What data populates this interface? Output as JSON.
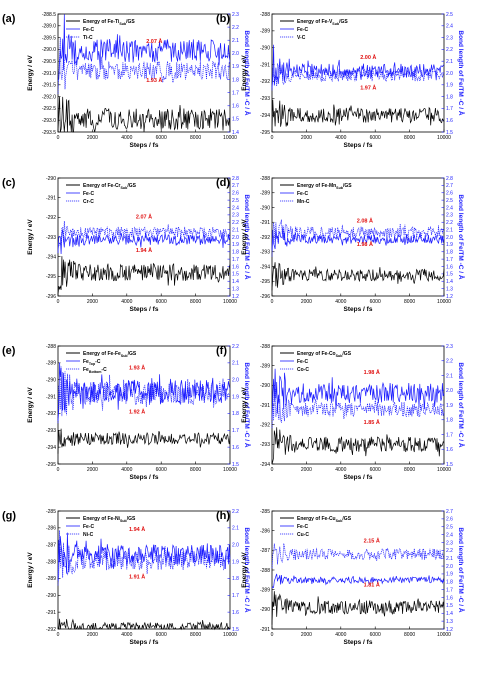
{
  "colors": {
    "energy": "#000000",
    "bond": "#1a1aff",
    "annotation": "#e01010"
  },
  "chart_data": [
    {
      "type": "line",
      "panel": "(a)",
      "xlabel": "Steps / fs",
      "ylabel_left": "Energy / eV",
      "ylabel_right": "Bond length of Fe/TM -C / Å",
      "xlim": [
        0,
        10000
      ],
      "xticks": [
        "0",
        "2000",
        "4000",
        "6000",
        "8000",
        "10000"
      ],
      "ylim_left": [
        -293.5,
        -288.5
      ],
      "yticks_left": [
        "-288.5",
        "-289.0",
        "-289.5",
        "-290.0",
        "-290.5",
        "-291.0",
        "-291.5",
        "-292.0",
        "-292.5",
        "-293.0",
        "-293.5"
      ],
      "ylim_right": [
        1.4,
        2.3
      ],
      "yticks_right": [
        "1.4",
        "1.5",
        "1.6",
        "1.7",
        "1.8",
        "1.9",
        "2.0",
        "2.1",
        "2.2",
        "2.3"
      ],
      "legend": [
        {
          "label": "Energy of Fe-Ti<sub>",
          "html": "Energy of Fe-Ti",
          "sub": "Sub",
          "tail": "/GS",
          "style": "energy"
        },
        {
          "label": "Fe-C",
          "style": "solid"
        },
        {
          "label": "Ti-C",
          "style": "dotted"
        }
      ],
      "series": [
        {
          "name": "Energy of Fe-Ti(Sub)/GS",
          "axis": "left",
          "style": "energy",
          "mean": -292.95,
          "amp": 0.45
        },
        {
          "name": "Fe-C",
          "axis": "right",
          "style": "solid",
          "mean": 2.02,
          "amp": 0.09
        },
        {
          "name": "Ti-C",
          "axis": "right",
          "style": "dotted",
          "mean": 1.87,
          "amp": 0.07
        }
      ],
      "annotations": [
        {
          "text": "2.07 Å",
          "x": 5600,
          "y": 2.08,
          "axis": "right"
        },
        {
          "text": "1.93 Å",
          "x": 5600,
          "y": 1.78,
          "axis": "right"
        }
      ]
    },
    {
      "type": "line",
      "panel": "(b)",
      "xlabel": "Steps / fs",
      "ylabel_left": "Energy / eV",
      "ylabel_right": "Bond length of Fe/TM -C / Å",
      "xlim": [
        0,
        10000
      ],
      "xticks": [
        "0",
        "2000",
        "4000",
        "6000",
        "8000",
        "10000"
      ],
      "ylim_left": [
        -295,
        -288
      ],
      "yticks_left": [
        "-288",
        "-289",
        "-290",
        "-291",
        "-292",
        "-293",
        "-294",
        "-295"
      ],
      "ylim_right": [
        1.5,
        2.5
      ],
      "yticks_right": [
        "1.5",
        "1.6",
        "1.7",
        "1.8",
        "1.9",
        "2.0",
        "2.1",
        "2.2",
        "2.3",
        "2.4",
        "2.5"
      ],
      "legend": [
        {
          "html": "Energy of Fe-V",
          "sub": "Sub",
          "tail": "/GS",
          "style": "energy"
        },
        {
          "label": "Fe-C",
          "style": "solid"
        },
        {
          "label": "V-C",
          "style": "dotted"
        }
      ],
      "series": [
        {
          "name": "Energy of Fe-V(Sub)/GS",
          "axis": "left",
          "style": "energy",
          "mean": -294.0,
          "amp": 0.45
        },
        {
          "name": "Fe-C",
          "axis": "right",
          "style": "solid",
          "mean": 2.02,
          "amp": 0.06
        },
        {
          "name": "V-C",
          "axis": "right",
          "style": "dotted",
          "mean": 1.98,
          "amp": 0.05
        }
      ],
      "annotations": [
        {
          "text": "2.00 Å",
          "x": 5600,
          "y": 2.12,
          "axis": "right"
        },
        {
          "text": "1.97 Å",
          "x": 5600,
          "y": 1.86,
          "axis": "right"
        }
      ]
    },
    {
      "type": "line",
      "panel": "(c)",
      "xlabel": "Steps / fs",
      "ylabel_left": "Energy / eV",
      "ylabel_right": "Bond length of Fe/TM -C / Å",
      "xlim": [
        0,
        10000
      ],
      "xticks": [
        "0",
        "2000",
        "4000",
        "6000",
        "8000",
        "10000"
      ],
      "ylim_left": [
        -296,
        -290
      ],
      "yticks_left": [
        "-290",
        "-291",
        "-292",
        "-293",
        "-294",
        "-295",
        "-296"
      ],
      "ylim_right": [
        1.2,
        2.8
      ],
      "yticks_right": [
        "1.2",
        "1.3",
        "1.4",
        "1.5",
        "1.6",
        "1.7",
        "1.8",
        "1.9",
        "2.0",
        "2.1",
        "2.2",
        "2.3",
        "2.4",
        "2.5",
        "2.6",
        "2.7",
        "2.8"
      ],
      "legend": [
        {
          "html": "Energy of Fe-Cr",
          "sub": "Sub",
          "tail": "/GS",
          "style": "energy"
        },
        {
          "label": "Fe-C",
          "style": "solid"
        },
        {
          "label": "Cr-C",
          "style": "dotted"
        }
      ],
      "series": [
        {
          "name": "Energy of Fe-Cr(Sub)/GS",
          "axis": "left",
          "style": "energy",
          "mean": -294.8,
          "amp": 0.45
        },
        {
          "name": "Fe-C",
          "axis": "right",
          "style": "solid",
          "mean": 1.96,
          "amp": 0.07
        },
        {
          "name": "Cr-C",
          "axis": "right",
          "style": "dotted",
          "mean": 2.06,
          "amp": 0.08
        }
      ],
      "annotations": [
        {
          "text": "2.07 Å",
          "x": 5000,
          "y": 2.25,
          "axis": "right"
        },
        {
          "text": "1.94 Å",
          "x": 5000,
          "y": 1.8,
          "axis": "right"
        }
      ]
    },
    {
      "type": "line",
      "panel": "(d)",
      "xlabel": "Steps / fs",
      "ylabel_left": "Energy / eV",
      "ylabel_right": "Bond length of Fe/TM -C / Å",
      "xlim": [
        0,
        10000
      ],
      "xticks": [
        "0",
        "2000",
        "4000",
        "6000",
        "8000",
        "10000"
      ],
      "ylim_left": [
        -296,
        -288
      ],
      "yticks_left": [
        "-288",
        "-289",
        "-290",
        "-291",
        "-292",
        "-293",
        "-294",
        "-295",
        "-296"
      ],
      "ylim_right": [
        1.2,
        2.8
      ],
      "yticks_right": [
        "1.2",
        "1.3",
        "1.4",
        "1.5",
        "1.6",
        "1.7",
        "1.8",
        "1.9",
        "2.0",
        "2.1",
        "2.2",
        "2.3",
        "2.4",
        "2.5",
        "2.6",
        "2.7",
        "2.8"
      ],
      "legend": [
        {
          "html": "Energy of Fe-Mn",
          "sub": "Sub",
          "tail": "/GS",
          "style": "energy"
        },
        {
          "label": "Fe-C",
          "style": "solid"
        },
        {
          "label": "Mn-C",
          "style": "dotted"
        }
      ],
      "series": [
        {
          "name": "Energy of Fe-Mn(Sub)/GS",
          "axis": "left",
          "style": "energy",
          "mean": -294.6,
          "amp": 0.4
        },
        {
          "name": "Fe-C",
          "axis": "right",
          "style": "solid",
          "mean": 1.97,
          "amp": 0.06
        },
        {
          "name": "Mn-C",
          "axis": "right",
          "style": "dotted",
          "mean": 2.06,
          "amp": 0.08
        }
      ],
      "annotations": [
        {
          "text": "2.08 Å",
          "x": 5400,
          "y": 2.2,
          "axis": "right"
        },
        {
          "text": "1.98 Å",
          "x": 5400,
          "y": 1.88,
          "axis": "right"
        }
      ]
    },
    {
      "type": "line",
      "panel": "(e)",
      "xlabel": "Steps / fs",
      "ylabel_left": "Energy / eV",
      "ylabel_right": "Bond length of Fe/TM -C / Å",
      "xlim": [
        0,
        10000
      ],
      "xticks": [
        "0",
        "2000",
        "4000",
        "6000",
        "8000",
        "10000"
      ],
      "ylim_left": [
        -295,
        -288
      ],
      "yticks_left": [
        "-288",
        "-289",
        "-290",
        "-291",
        "-292",
        "-293",
        "-294",
        "-295"
      ],
      "ylim_right": [
        1.5,
        2.2
      ],
      "yticks_right": [
        "1.5",
        "1.6",
        "1.7",
        "1.8",
        "1.9",
        "2.0",
        "2.1",
        "2.2"
      ],
      "legend": [
        {
          "html": "Energy of Fe-Fe",
          "sub": "Sub",
          "tail": "/GS",
          "style": "energy"
        },
        {
          "html": "Fe",
          "sub": "Top",
          "tail": "-C",
          "style": "solid"
        },
        {
          "html": "Fe",
          "sub": "Bottom",
          "tail": "-C",
          "style": "dotted"
        }
      ],
      "series": [
        {
          "name": "Energy of Fe-Fe(Sub)/GS",
          "axis": "left",
          "style": "energy",
          "mean": -293.5,
          "amp": 0.35
        },
        {
          "name": "Fe(Top)-C",
          "axis": "right",
          "style": "solid",
          "mean": 1.93,
          "amp": 0.07
        },
        {
          "name": "Fe(Bottom)-C",
          "axis": "right",
          "style": "dotted",
          "mean": 1.92,
          "amp": 0.07
        }
      ],
      "annotations": [
        {
          "text": "1.93 Å",
          "x": 4600,
          "y": 2.06,
          "axis": "right"
        },
        {
          "text": "1.92 Å",
          "x": 4600,
          "y": 1.8,
          "axis": "right"
        }
      ]
    },
    {
      "type": "line",
      "panel": "(f)",
      "xlabel": "Steps / fs",
      "ylabel_left": "Energy / eV",
      "ylabel_right": "Bond length of Fe/TM -C / Å",
      "xlim": [
        0,
        10000
      ],
      "xticks": [
        "0",
        "2000",
        "4000",
        "6000",
        "8000",
        "10000"
      ],
      "ylim_left": [
        -294,
        -288
      ],
      "yticks_left": [
        "-288",
        "-289",
        "-290",
        "-291",
        "-292",
        "-293",
        "-294"
      ],
      "ylim_right": [
        1.5,
        2.3
      ],
      "yticks_right": [
        "1.5",
        "1.6",
        "1.7",
        "1.8",
        "1.9",
        "2.0",
        "2.1",
        "2.2",
        "2.3"
      ],
      "legend": [
        {
          "html": "Energy of Fe-Co",
          "sub": "Sub",
          "tail": "/GS",
          "style": "energy"
        },
        {
          "label": "Fe-C",
          "style": "solid"
        },
        {
          "label": "Co-C",
          "style": "dotted"
        }
      ],
      "series": [
        {
          "name": "Energy of Fe-Co(Sub)/GS",
          "axis": "left",
          "style": "energy",
          "mean": -293.0,
          "amp": 0.4
        },
        {
          "name": "Fe-C",
          "axis": "right",
          "style": "solid",
          "mean": 1.98,
          "amp": 0.07
        },
        {
          "name": "Co-C",
          "axis": "right",
          "style": "dotted",
          "mean": 1.87,
          "amp": 0.05
        }
      ],
      "annotations": [
        {
          "text": "1.98 Å",
          "x": 5800,
          "y": 2.11,
          "axis": "right"
        },
        {
          "text": "1.85 Å",
          "x": 5800,
          "y": 1.77,
          "axis": "right"
        }
      ]
    },
    {
      "type": "line",
      "panel": "(g)",
      "xlabel": "Steps / fs",
      "ylabel_left": "Energy / eV",
      "ylabel_right": "Bond length of Fe/TM -C / Å",
      "xlim": [
        0,
        10000
      ],
      "xticks": [
        "0",
        "2000",
        "4000",
        "6000",
        "8000",
        "10000"
      ],
      "ylim_left": [
        -292,
        -285
      ],
      "yticks_left": [
        "-285",
        "-286",
        "-287",
        "-288",
        "-289",
        "-290",
        "-291",
        "-292"
      ],
      "ylim_right": [
        1.5,
        2.2
      ],
      "yticks_right": [
        "1.5",
        "1.6",
        "1.7",
        "1.8",
        "1.9",
        "2.0",
        "2.1",
        "2.2"
      ],
      "legend": [
        {
          "html": "Energy of Fe-Ni",
          "sub": "Sub",
          "tail": "/GS",
          "style": "energy"
        },
        {
          "label": "Fe-C",
          "style": "solid"
        },
        {
          "label": "Ni-C",
          "style": "dotted"
        }
      ],
      "series": [
        {
          "name": "Energy of Fe-Ni(Sub)/GS",
          "axis": "left",
          "style": "energy",
          "mean": -291.9,
          "amp": 0.3
        },
        {
          "name": "Fe-C",
          "axis": "right",
          "style": "solid",
          "mean": 1.94,
          "amp": 0.06
        },
        {
          "name": "Ni-C",
          "axis": "right",
          "style": "dotted",
          "mean": 1.91,
          "amp": 0.06
        }
      ],
      "annotations": [
        {
          "text": "1.94 Å",
          "x": 4600,
          "y": 2.08,
          "axis": "right"
        },
        {
          "text": "1.91 Å",
          "x": 4600,
          "y": 1.8,
          "axis": "right"
        }
      ]
    },
    {
      "type": "line",
      "panel": "(h)",
      "xlabel": "Steps / fs",
      "ylabel_left": "Energy / eV",
      "ylabel_right": "Bond length of Fe/TM -C / Å",
      "xlim": [
        0,
        10000
      ],
      "xticks": [
        "0",
        "2000",
        "4000",
        "6000",
        "8000",
        "10000"
      ],
      "ylim_left": [
        -291,
        -285
      ],
      "yticks_left": [
        "-285",
        "-286",
        "-287",
        "-288",
        "-289",
        "-290",
        "-291"
      ],
      "ylim_right": [
        1.2,
        2.7
      ],
      "yticks_right": [
        "1.2",
        "1.3",
        "1.4",
        "1.5",
        "1.6",
        "1.7",
        "1.8",
        "1.9",
        "2.0",
        "2.1",
        "2.2",
        "2.3",
        "2.4",
        "2.5",
        "2.6",
        "2.7"
      ],
      "legend": [
        {
          "html": "Energy of Fe-Cu",
          "sub": "Sub",
          "tail": "/GS",
          "style": "energy"
        },
        {
          "label": "Fe-C",
          "style": "solid"
        },
        {
          "label": "Cu-C",
          "style": "dotted"
        }
      ],
      "series": [
        {
          "name": "Energy of Fe-Cu(Sub)/GS",
          "axis": "left",
          "style": "energy",
          "mean": -289.9,
          "amp": 0.35
        },
        {
          "name": "Fe-C",
          "axis": "right",
          "style": "solid",
          "mean": 1.82,
          "amp": 0.04
        },
        {
          "name": "Cu-C",
          "axis": "right",
          "style": "dotted",
          "mean": 2.15,
          "amp": 0.07
        }
      ],
      "annotations": [
        {
          "text": "2.15 Å",
          "x": 5800,
          "y": 2.3,
          "axis": "right"
        },
        {
          "text": "1.81 Å",
          "x": 5800,
          "y": 1.74,
          "axis": "right"
        }
      ]
    }
  ]
}
